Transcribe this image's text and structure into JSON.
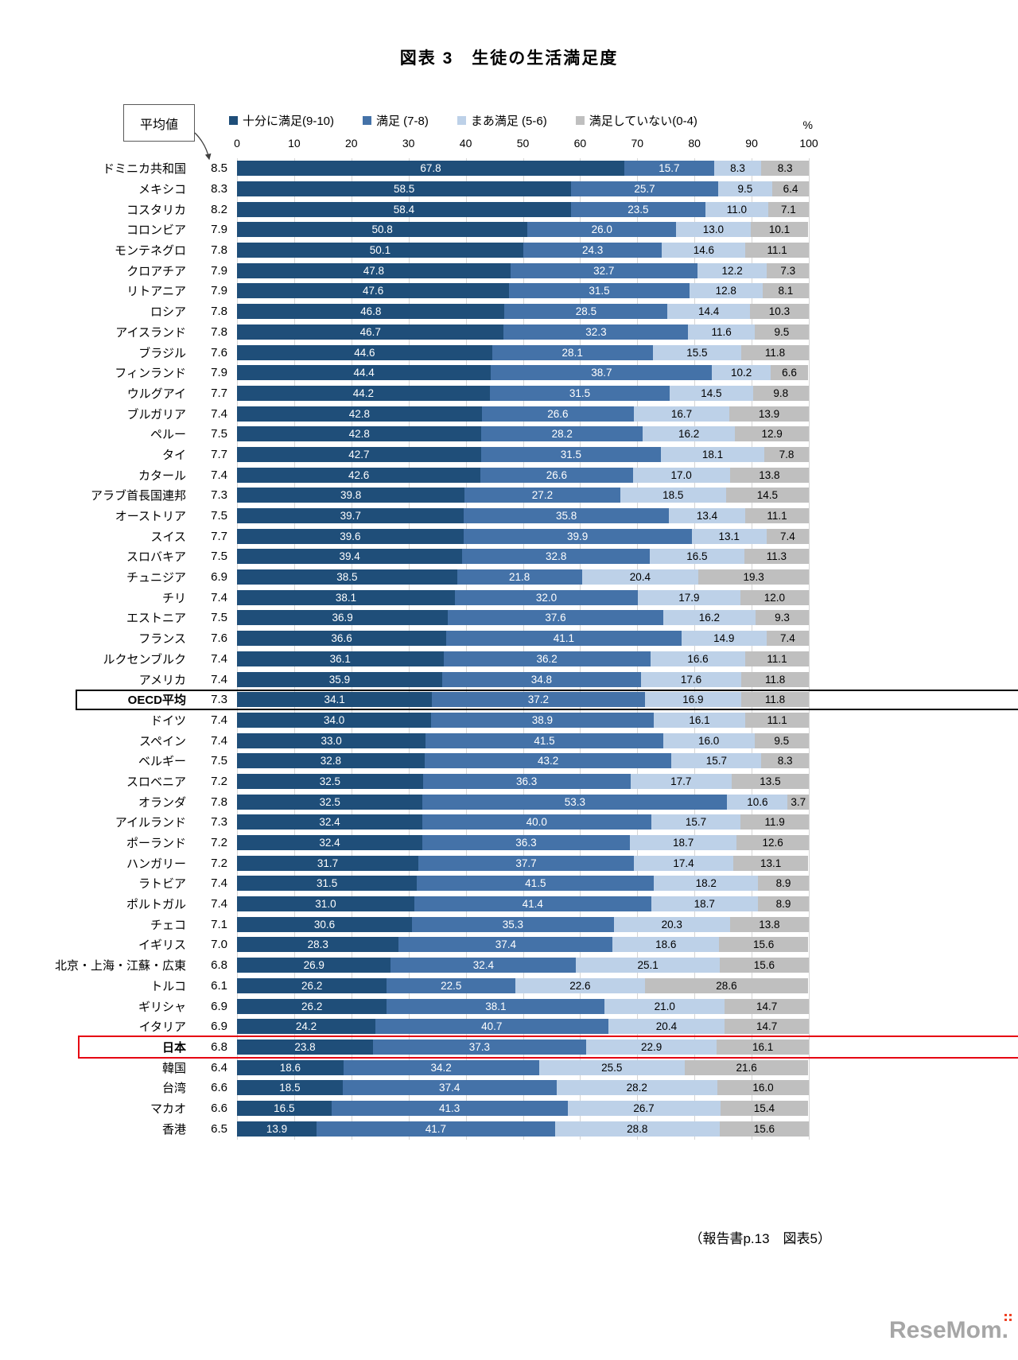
{
  "title": "図表 3　生徒の生活満足度",
  "annotation": {
    "avg_box": "平均値"
  },
  "axis": {
    "unit": "%",
    "ticks": [
      0,
      10,
      20,
      30,
      40,
      50,
      60,
      70,
      80,
      90,
      100
    ],
    "max": 100
  },
  "footer": "（報告書p.13　図表5）",
  "watermark": "ReseMom.",
  "chart_data": {
    "type": "bar",
    "orientation": "horizontal",
    "stacked": true,
    "value_unit": "%",
    "xlim": [
      0,
      100
    ],
    "grid": true,
    "legend_position": "top",
    "series": [
      {
        "name": "十分に満足(9-10)",
        "color": "#1f4e79",
        "text_color": "#ffffff"
      },
      {
        "name": "満足 (7-8)",
        "color": "#4472a8",
        "text_color": "#ffffff"
      },
      {
        "name": "まあ満足 (5-6)",
        "color": "#bdd1e8",
        "text_color": "#000000"
      },
      {
        "name": "満足していない(0-4)",
        "color": "#bfbfbf",
        "text_color": "#000000"
      }
    ],
    "highlight_colors": {
      "black": "#000000",
      "red": "#e60012"
    },
    "rows": [
      {
        "country": "ドミニカ共和国",
        "avg": 8.5,
        "values": [
          67.8,
          15.7,
          8.3,
          8.3
        ]
      },
      {
        "country": "メキシコ",
        "avg": 8.3,
        "values": [
          58.5,
          25.7,
          9.5,
          6.4
        ]
      },
      {
        "country": "コスタリカ",
        "avg": 8.2,
        "values": [
          58.4,
          23.5,
          11.0,
          7.1
        ]
      },
      {
        "country": "コロンビア",
        "avg": 7.9,
        "values": [
          50.8,
          26.0,
          13.0,
          10.1
        ]
      },
      {
        "country": "モンテネグロ",
        "avg": 7.8,
        "values": [
          50.1,
          24.3,
          14.6,
          11.1
        ]
      },
      {
        "country": "クロアチア",
        "avg": 7.9,
        "values": [
          47.8,
          32.7,
          12.2,
          7.3
        ]
      },
      {
        "country": "リトアニア",
        "avg": 7.9,
        "values": [
          47.6,
          31.5,
          12.8,
          8.1
        ]
      },
      {
        "country": "ロシア",
        "avg": 7.8,
        "values": [
          46.8,
          28.5,
          14.4,
          10.3
        ]
      },
      {
        "country": "アイスランド",
        "avg": 7.8,
        "values": [
          46.7,
          32.3,
          11.6,
          9.5
        ]
      },
      {
        "country": "ブラジル",
        "avg": 7.6,
        "values": [
          44.6,
          28.1,
          15.5,
          11.8
        ]
      },
      {
        "country": "フィンランド",
        "avg": 7.9,
        "values": [
          44.4,
          38.7,
          10.2,
          6.6
        ]
      },
      {
        "country": "ウルグアイ",
        "avg": 7.7,
        "values": [
          44.2,
          31.5,
          14.5,
          9.8
        ]
      },
      {
        "country": "ブルガリア",
        "avg": 7.4,
        "values": [
          42.8,
          26.6,
          16.7,
          13.9
        ]
      },
      {
        "country": "ペルー",
        "avg": 7.5,
        "values": [
          42.8,
          28.2,
          16.2,
          12.9
        ]
      },
      {
        "country": "タイ",
        "avg": 7.7,
        "values": [
          42.7,
          31.5,
          18.1,
          7.8
        ]
      },
      {
        "country": "カタール",
        "avg": 7.4,
        "values": [
          42.6,
          26.6,
          17.0,
          13.8
        ]
      },
      {
        "country": "アラブ首長国連邦",
        "avg": 7.3,
        "values": [
          39.8,
          27.2,
          18.5,
          14.5
        ]
      },
      {
        "country": "オーストリア",
        "avg": 7.5,
        "values": [
          39.7,
          35.8,
          13.4,
          11.1
        ]
      },
      {
        "country": "スイス",
        "avg": 7.7,
        "values": [
          39.6,
          39.9,
          13.1,
          7.4
        ]
      },
      {
        "country": "スロバキア",
        "avg": 7.5,
        "values": [
          39.4,
          32.8,
          16.5,
          11.3
        ]
      },
      {
        "country": "チュニジア",
        "avg": 6.9,
        "values": [
          38.5,
          21.8,
          20.4,
          19.3
        ]
      },
      {
        "country": "チリ",
        "avg": 7.4,
        "values": [
          38.1,
          32.0,
          17.9,
          12.0
        ]
      },
      {
        "country": "エストニア",
        "avg": 7.5,
        "values": [
          36.9,
          37.6,
          16.2,
          9.3
        ]
      },
      {
        "country": "フランス",
        "avg": 7.6,
        "values": [
          36.6,
          41.1,
          14.9,
          7.4
        ]
      },
      {
        "country": "ルクセンブルク",
        "avg": 7.4,
        "values": [
          36.1,
          36.2,
          16.6,
          11.1
        ]
      },
      {
        "country": "アメリカ",
        "avg": 7.4,
        "values": [
          35.9,
          34.8,
          17.6,
          11.8
        ]
      },
      {
        "country": "OECD平均",
        "avg": 7.3,
        "values": [
          34.1,
          37.2,
          16.9,
          11.8
        ],
        "highlight": "black"
      },
      {
        "country": "ドイツ",
        "avg": 7.4,
        "values": [
          34.0,
          38.9,
          16.1,
          11.1
        ]
      },
      {
        "country": "スペイン",
        "avg": 7.4,
        "values": [
          33.0,
          41.5,
          16.0,
          9.5
        ]
      },
      {
        "country": "ベルギー",
        "avg": 7.5,
        "values": [
          32.8,
          43.2,
          15.7,
          8.3
        ]
      },
      {
        "country": "スロベニア",
        "avg": 7.2,
        "values": [
          32.5,
          36.3,
          17.7,
          13.5
        ]
      },
      {
        "country": "オランダ",
        "avg": 7.8,
        "values": [
          32.5,
          53.3,
          10.6,
          3.7
        ]
      },
      {
        "country": "アイルランド",
        "avg": 7.3,
        "values": [
          32.4,
          40.0,
          15.7,
          11.9
        ]
      },
      {
        "country": "ポーランド",
        "avg": 7.2,
        "values": [
          32.4,
          36.3,
          18.7,
          12.6
        ]
      },
      {
        "country": "ハンガリー",
        "avg": 7.2,
        "values": [
          31.7,
          37.7,
          17.4,
          13.1
        ]
      },
      {
        "country": "ラトビア",
        "avg": 7.4,
        "values": [
          31.5,
          41.5,
          18.2,
          8.9
        ]
      },
      {
        "country": "ポルトガル",
        "avg": 7.4,
        "values": [
          31.0,
          41.4,
          18.7,
          8.9
        ]
      },
      {
        "country": "チェコ",
        "avg": 7.1,
        "values": [
          30.6,
          35.3,
          20.3,
          13.8
        ]
      },
      {
        "country": "イギリス",
        "avg": 7.0,
        "values": [
          28.3,
          37.4,
          18.6,
          15.6
        ]
      },
      {
        "country": "北京・上海・江蘇・広東",
        "avg": 6.8,
        "values": [
          26.9,
          32.4,
          25.1,
          15.6
        ]
      },
      {
        "country": "トルコ",
        "avg": 6.1,
        "values": [
          26.2,
          22.5,
          22.6,
          28.6
        ]
      },
      {
        "country": "ギリシャ",
        "avg": 6.9,
        "values": [
          26.2,
          38.1,
          21.0,
          14.7
        ]
      },
      {
        "country": "イタリア",
        "avg": 6.9,
        "values": [
          24.2,
          40.7,
          20.4,
          14.7
        ]
      },
      {
        "country": "日本",
        "avg": 6.8,
        "values": [
          23.8,
          37.3,
          22.9,
          16.1
        ],
        "highlight": "red"
      },
      {
        "country": "韓国",
        "avg": 6.4,
        "values": [
          18.6,
          34.2,
          25.5,
          21.6
        ]
      },
      {
        "country": "台湾",
        "avg": 6.6,
        "values": [
          18.5,
          37.4,
          28.2,
          16.0
        ]
      },
      {
        "country": "マカオ",
        "avg": 6.6,
        "values": [
          16.5,
          41.3,
          26.7,
          15.4
        ]
      },
      {
        "country": "香港",
        "avg": 6.5,
        "values": [
          13.9,
          41.7,
          28.8,
          15.6
        ]
      }
    ]
  }
}
